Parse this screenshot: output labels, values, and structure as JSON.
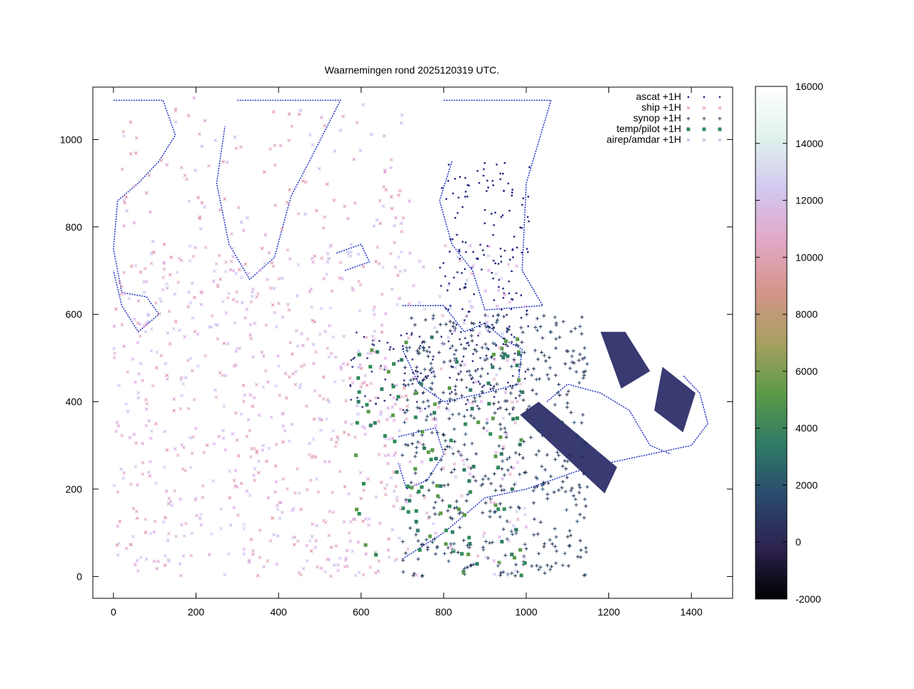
{
  "chart_data": {
    "type": "scatter",
    "title": "Waarnemingen rond 2025120319 UTC.",
    "xlabel": "",
    "ylabel": "",
    "xlim": [
      -50,
      1500
    ],
    "ylim": [
      -50,
      1120
    ],
    "x_ticks": [
      "0",
      "200",
      "400",
      "600",
      "800",
      "1000",
      "1200",
      "1400"
    ],
    "y_ticks": [
      "0",
      "200",
      "400",
      "600",
      "800",
      "1000"
    ],
    "grid": false,
    "legend_position": "top-right",
    "series": [
      {
        "name": "ascat +1H",
        "marker": "dot",
        "color": "#1a237e",
        "coverage": [
          {
            "x": [
              790,
              1010
            ],
            "y": [
              560,
              950
            ]
          },
          {
            "x": [
              570,
              1000
            ],
            "y": [
              380,
              560
            ]
          }
        ]
      },
      {
        "name": "ship +1H",
        "marker": "x",
        "color": "#d98fb0",
        "coverage": [
          {
            "x": [
              0,
              720
            ],
            "y": [
              0,
              1100
            ]
          }
        ]
      },
      {
        "name": "synop +1H",
        "marker": "plus",
        "color": "#233a5e",
        "coverage": [
          {
            "x": [
              700,
              1150
            ],
            "y": [
              0,
              600
            ]
          }
        ]
      },
      {
        "name": "temp/pilot +1H",
        "marker": "square",
        "color": "#2e8b57",
        "coverage": [
          {
            "x": [
              580,
              1000
            ],
            "y": [
              0,
              560
            ]
          }
        ]
      },
      {
        "name": "airep/amdar +1H",
        "marker": "x",
        "color": "#c9a0dc",
        "coverage": [
          {
            "x": [
              0,
              1000
            ],
            "y": [
              0,
              760
            ]
          }
        ]
      }
    ],
    "colorbar": {
      "ticks": [
        "-2000",
        "0",
        "2000",
        "4000",
        "6000",
        "8000",
        "10000",
        "12000",
        "14000",
        "16000"
      ],
      "range": [
        -2000,
        16000
      ],
      "stops": [
        "#000000",
        "#2d2250",
        "#2a4a6e",
        "#2f7a66",
        "#5a9a48",
        "#a8a060",
        "#d4958a",
        "#e2a8c8",
        "#d2c8f0",
        "#e0f2ec",
        "#ffffff"
      ]
    }
  }
}
